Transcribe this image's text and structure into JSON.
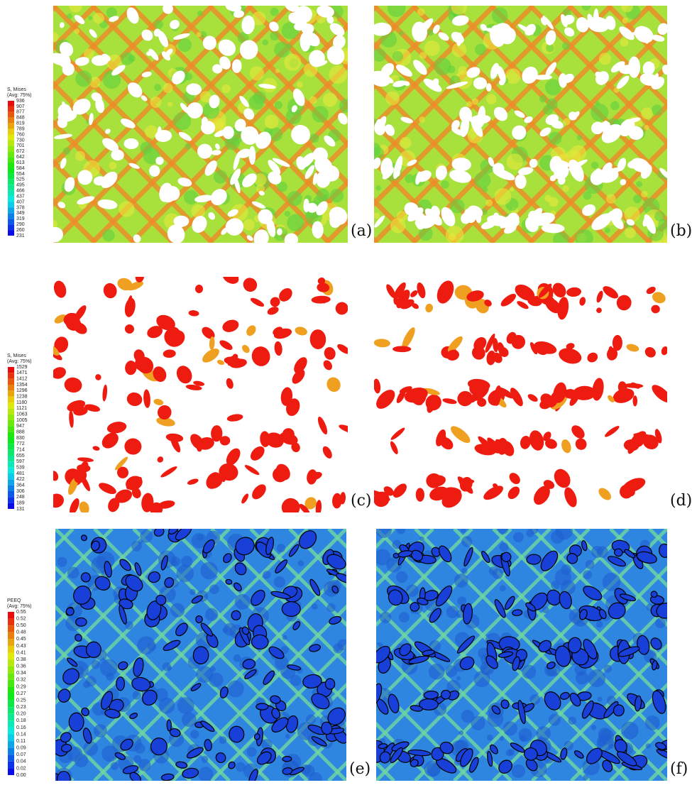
{
  "legends": [
    {
      "title": "S, Mises",
      "subtitle": "(Avg: 75%)",
      "values": [
        "936",
        "907",
        "877",
        "848",
        "819",
        "789",
        "760",
        "730",
        "701",
        "672",
        "642",
        "613",
        "584",
        "554",
        "525",
        "495",
        "466",
        "437",
        "407",
        "378",
        "349",
        "319",
        "290",
        "260",
        "231"
      ]
    },
    {
      "title": "S, Mises",
      "subtitle": "(Avg: 75%)",
      "values": [
        "1529",
        "1471",
        "1412",
        "1354",
        "1296",
        "1238",
        "1180",
        "1121",
        "1063",
        "1005",
        "947",
        "888",
        "830",
        "772",
        "714",
        "655",
        "597",
        "539",
        "481",
        "422",
        "364",
        "306",
        "248",
        "189",
        "131"
      ]
    },
    {
      "title": "PEEQ",
      "subtitle": "(Avg: 75%)",
      "values": [
        "0.55",
        "0.52",
        "0.50",
        "0.48",
        "0.45",
        "0.43",
        "0.41",
        "0.38",
        "0.36",
        "0.34",
        "0.32",
        "0.29",
        "0.27",
        "0.25",
        "0.23",
        "0.20",
        "0.18",
        "0.16",
        "0.14",
        "0.11",
        "0.09",
        "0.07",
        "0.04",
        "0.02",
        "0.00"
      ]
    }
  ],
  "panels": [
    {
      "label": "(a)"
    },
    {
      "label": "(b)"
    },
    {
      "label": "(c)"
    },
    {
      "label": "(d)"
    },
    {
      "label": "(e)"
    },
    {
      "label": "(f)"
    }
  ]
}
